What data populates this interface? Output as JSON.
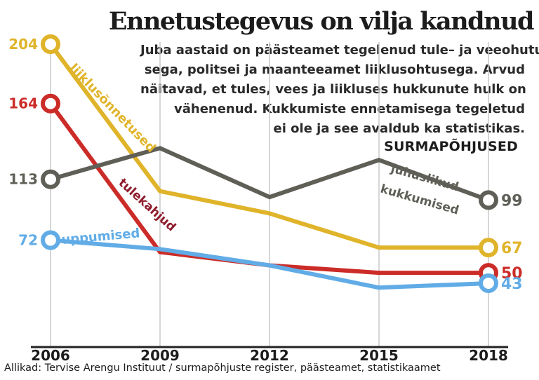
{
  "title": "Ennetustegevus on vilja kandnud",
  "description_lines": [
    "Juba aastaid on päästeamet tegelenud tule– ja veeohutu–",
    "sega, politsei ja maanteeamet liiklusohtusega. Arvud",
    "näitavad, et tules, vees ja liikluses hukkunute hulk on",
    "vähenenud. Kukkumiste ennetamisega tegeletud",
    "ei ole ja see avaldub ka statistikas."
  ],
  "section_label": "SURMAPÕHJUSED",
  "source": "Allikad: Tervise Arengu Instituut / surmapõhjuste register, päästeamet, statistikaamet",
  "colors": {
    "axis": "#222222",
    "gridline": "#c8c8c8"
  },
  "chart_data": {
    "type": "line",
    "title": "SURMAPÕHJUSED",
    "x": [
      "2006",
      "2009",
      "2012",
      "2015",
      "2018"
    ],
    "ylim": [
      0,
      230
    ],
    "grid": "vertical",
    "series": [
      {
        "id": "liiklus",
        "name": "liiklusõnnetused",
        "color": "#e0b42a",
        "values": [
          204,
          105,
          90,
          67,
          67
        ],
        "label_start": "204",
        "label_end": "67"
      },
      {
        "id": "tule",
        "name": "tulekahjud",
        "color": "#cc2c28",
        "label_color": "#8e1b2c",
        "values": [
          164,
          64,
          55,
          50,
          50
        ],
        "label_start": "164",
        "label_end": "50"
      },
      {
        "id": "kukkumised",
        "name_lines": [
          "juhuslikud",
          "kukkumised"
        ],
        "color": "#5f5f57",
        "values": [
          113,
          134,
          101,
          126,
          99
        ],
        "label_start": "113",
        "label_end": "99"
      },
      {
        "id": "uppumised",
        "name": "uppumised",
        "color": "#61ace6",
        "values": [
          72,
          66,
          55,
          40,
          43
        ],
        "label_start": "72",
        "label_end": "43"
      }
    ]
  }
}
